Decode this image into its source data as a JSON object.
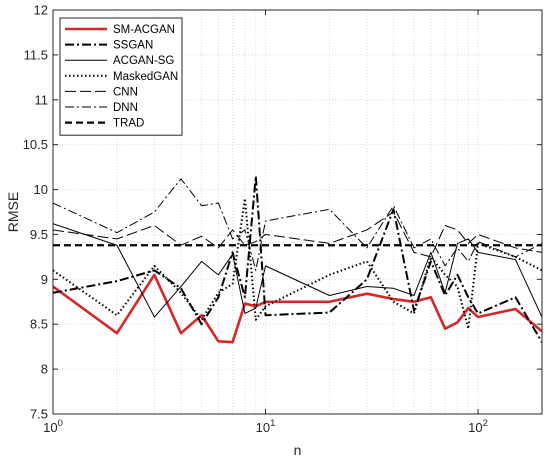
{
  "chart_data": {
    "type": "line",
    "xlabel": "n",
    "ylabel": "RMSE",
    "x_scale": "log",
    "xlim": [
      1,
      200
    ],
    "ylim": [
      7.5,
      12
    ],
    "yticks": [
      "7.5",
      "8",
      "8.5",
      "9",
      "9.5",
      "10",
      "10.5",
      "11",
      "11.5",
      "12"
    ],
    "xticks": [
      {
        "value": 1,
        "base": "10",
        "exp": "0"
      },
      {
        "value": 10,
        "base": "10",
        "exp": "1"
      },
      {
        "value": 100,
        "base": "10",
        "exp": "2"
      }
    ],
    "grid": true,
    "legend_position": "top-left",
    "series": [
      {
        "name": "SM-ACGAN",
        "color": "#d62728",
        "style": "solid-thick",
        "x": [
          1,
          2,
          3,
          4,
          5,
          6,
          7,
          8,
          9,
          10,
          20,
          30,
          40,
          50,
          60,
          70,
          80,
          90,
          100,
          150,
          200
        ],
        "y": [
          8.92,
          8.4,
          9.05,
          8.4,
          8.6,
          8.31,
          8.3,
          8.73,
          8.7,
          8.75,
          8.75,
          8.84,
          8.78,
          8.75,
          8.8,
          8.45,
          8.52,
          8.68,
          8.58,
          8.67,
          8.42
        ]
      },
      {
        "name": "SSGAN",
        "color": "#000000",
        "style": "dashdot-thick",
        "x": [
          1,
          2,
          3,
          4,
          5,
          6,
          7,
          8,
          9,
          10,
          20,
          30,
          40,
          50,
          60,
          70,
          80,
          90,
          100,
          150,
          200
        ],
        "y": [
          8.85,
          8.98,
          9.1,
          8.9,
          8.5,
          8.8,
          9.3,
          8.8,
          10.15,
          8.6,
          8.63,
          9.0,
          9.78,
          8.65,
          9.2,
          8.82,
          9.05,
          8.8,
          8.62,
          8.8,
          8.3
        ]
      },
      {
        "name": "ACGAN-SG",
        "color": "#000000",
        "style": "solid-thin",
        "x": [
          1,
          2,
          3,
          4,
          5,
          6,
          7,
          8,
          9,
          10,
          20,
          30,
          40,
          50,
          60,
          70,
          80,
          90,
          100,
          150,
          200
        ],
        "y": [
          9.62,
          9.38,
          8.58,
          8.92,
          9.2,
          9.05,
          9.28,
          8.62,
          8.68,
          9.15,
          8.82,
          8.92,
          8.9,
          8.82,
          9.3,
          8.85,
          9.4,
          9.45,
          9.3,
          9.22,
          8.58
        ]
      },
      {
        "name": "MaskedGAN",
        "color": "#000000",
        "style": "dotted",
        "x": [
          1,
          2,
          3,
          4,
          5,
          6,
          7,
          8,
          9,
          10,
          20,
          30,
          40,
          50,
          60,
          70,
          80,
          90,
          100,
          150,
          200
        ],
        "y": [
          9.1,
          8.6,
          9.15,
          8.85,
          8.55,
          8.85,
          8.95,
          9.9,
          8.55,
          8.7,
          9.05,
          9.2,
          8.75,
          8.62,
          9.25,
          9.05,
          8.92,
          8.45,
          9.4,
          9.25,
          9.1
        ]
      },
      {
        "name": "CNN",
        "color": "#000000",
        "style": "longdash-thin",
        "x": [
          1,
          2,
          3,
          4,
          5,
          6,
          7,
          8,
          9,
          10,
          20,
          30,
          40,
          50,
          60,
          70,
          80,
          90,
          100,
          150,
          200
        ],
        "y": [
          9.55,
          9.45,
          9.6,
          9.38,
          9.48,
          9.35,
          9.55,
          9.38,
          9.42,
          9.5,
          9.4,
          9.55,
          9.75,
          9.3,
          9.25,
          9.6,
          9.55,
          9.4,
          9.5,
          9.35,
          9.3
        ]
      },
      {
        "name": "DNN",
        "color": "#000000",
        "style": "dashdot-thin",
        "x": [
          1,
          2,
          3,
          4,
          5,
          6,
          7,
          8,
          9,
          10,
          20,
          30,
          40,
          50,
          60,
          70,
          80,
          90,
          100,
          150,
          200
        ],
        "y": [
          9.85,
          9.52,
          9.75,
          10.12,
          9.82,
          9.85,
          9.45,
          9.55,
          9.1,
          9.65,
          9.78,
          9.35,
          9.82,
          9.35,
          9.45,
          9.15,
          9.35,
          9.2,
          9.42,
          9.25,
          9.4
        ]
      },
      {
        "name": "TRAD",
        "color": "#000000",
        "style": "dashed-thick",
        "x": [
          1,
          200
        ],
        "y": [
          9.38,
          9.38
        ]
      }
    ]
  }
}
